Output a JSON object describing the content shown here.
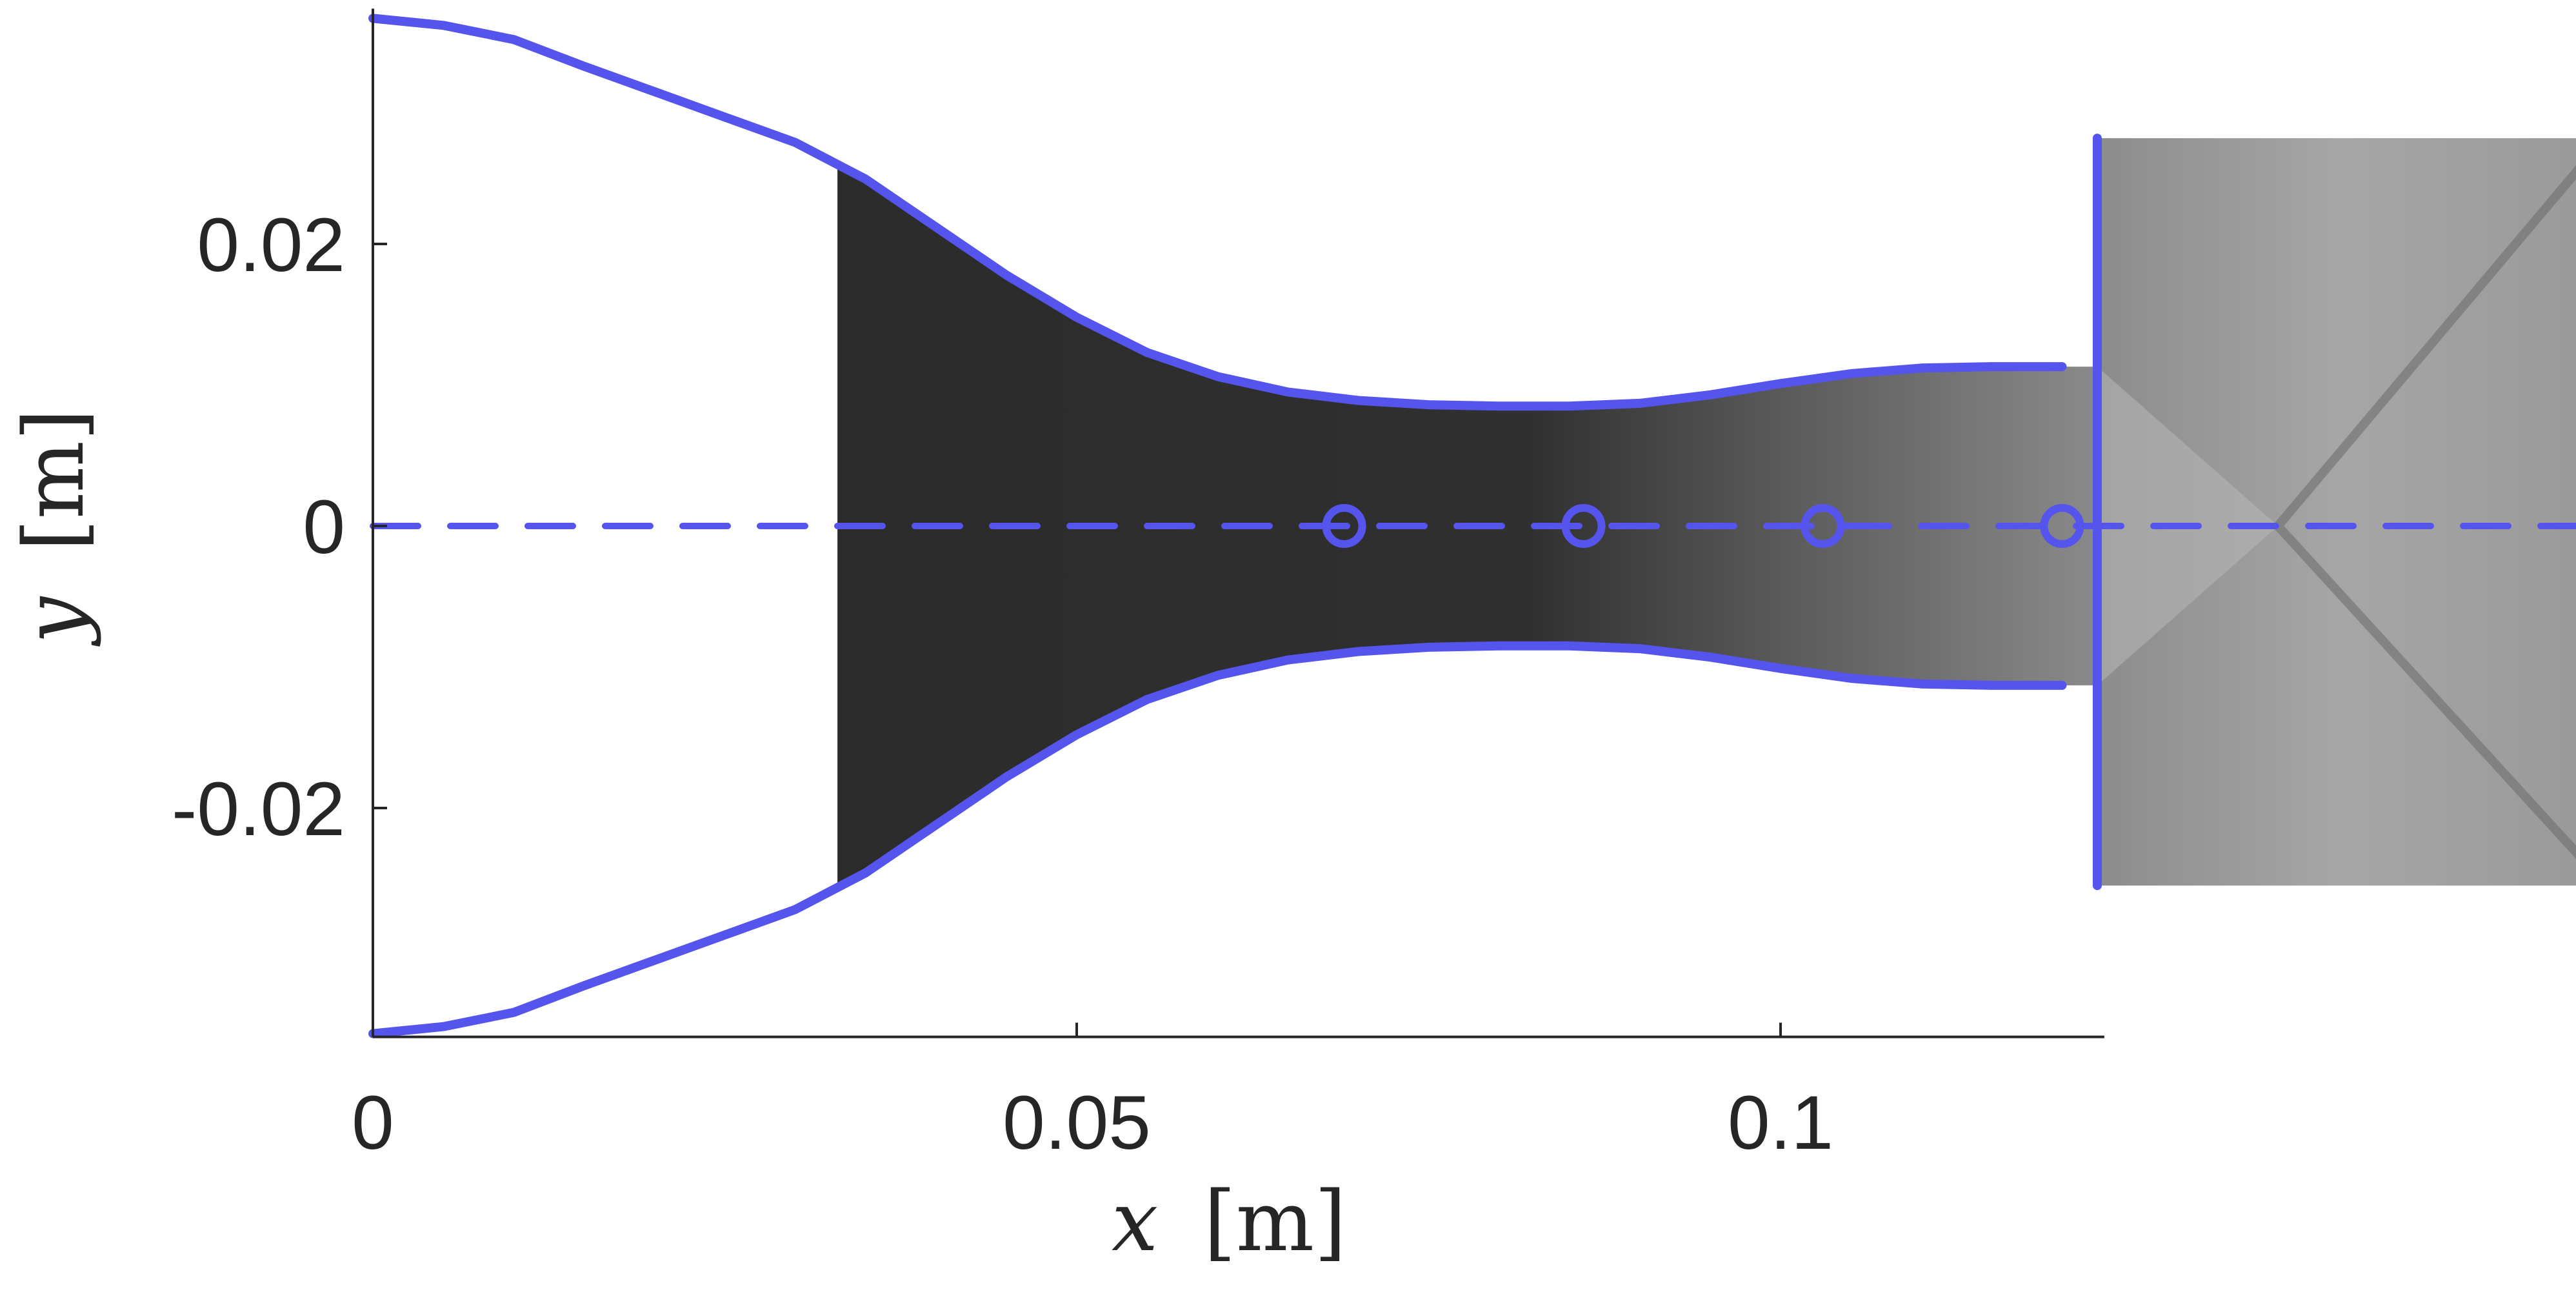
{
  "chart_data": {
    "type": "line",
    "title": "",
    "xlabel_var": "x",
    "xlabel_unit": "[m]",
    "ylabel_var": "y",
    "ylabel_unit": "[m]",
    "xlim": [
      0,
      0.123
    ],
    "ylim": [
      -0.036,
      0.036
    ],
    "x_ticks": [
      0,
      0.05,
      0.1
    ],
    "x_tick_labels": [
      "0",
      "0.05",
      "0.1"
    ],
    "y_ticks": [
      0.02,
      0,
      -0.02
    ],
    "y_tick_labels": [
      "0.02",
      "0",
      "-0.02"
    ],
    "grid": false,
    "legend": "none",
    "series": [
      {
        "id": "upper-wall",
        "style": "solid",
        "x": [
          0,
          0.005,
          0.01,
          0.015,
          0.02,
          0.025,
          0.03,
          0.035,
          0.04,
          0.045,
          0.05,
          0.055,
          0.06,
          0.065,
          0.07,
          0.075,
          0.08,
          0.085,
          0.09,
          0.095,
          0.1,
          0.105,
          0.11,
          0.115,
          0.12
        ],
        "y": [
          0.036,
          0.0355,
          0.0345,
          0.0326,
          0.0308,
          0.029,
          0.0272,
          0.0246,
          0.0212,
          0.0178,
          0.0148,
          0.0123,
          0.0106,
          0.0095,
          0.0089,
          0.0086,
          0.0085,
          0.0085,
          0.0087,
          0.0093,
          0.0101,
          0.0108,
          0.0112,
          0.0113,
          0.0113
        ]
      },
      {
        "id": "lower-wall",
        "style": "solid",
        "x": [
          0,
          0.005,
          0.01,
          0.015,
          0.02,
          0.025,
          0.03,
          0.035,
          0.04,
          0.045,
          0.05,
          0.055,
          0.06,
          0.065,
          0.07,
          0.075,
          0.08,
          0.085,
          0.09,
          0.095,
          0.1,
          0.105,
          0.11,
          0.115,
          0.12
        ],
        "y": [
          -0.036,
          -0.0355,
          -0.0345,
          -0.0326,
          -0.0308,
          -0.029,
          -0.0272,
          -0.0246,
          -0.0212,
          -0.0178,
          -0.0148,
          -0.0123,
          -0.0106,
          -0.0095,
          -0.0089,
          -0.0086,
          -0.0085,
          -0.0085,
          -0.0087,
          -0.0093,
          -0.0101,
          -0.0108,
          -0.0112,
          -0.0113,
          -0.0113
        ]
      },
      {
        "id": "nozzle-exit",
        "style": "solid",
        "x": [
          0.1225,
          0.1225
        ],
        "y": [
          -0.0255,
          0.0275
        ]
      },
      {
        "id": "centerline",
        "style": "dashed",
        "x": [
          0,
          0.157
        ],
        "y": [
          0,
          0
        ]
      }
    ],
    "markers": {
      "shape": "circle",
      "x": [
        0.069,
        0.086,
        0.103,
        0.12
      ],
      "y": [
        0,
        0,
        0,
        0
      ]
    },
    "overlays": [
      {
        "id": "schlieren-nozzle",
        "x_range": [
          0.033,
          0.1225
        ],
        "y_range": [
          -0.0255,
          0.0275
        ]
      },
      {
        "id": "schlieren-jet",
        "x_range": [
          0.1225,
          0.157
        ],
        "y_range": [
          -0.0255,
          0.0275
        ]
      }
    ],
    "colors": {
      "line": "#5555ee",
      "axis": "#262626",
      "image_dark": "#262626",
      "image_light": "#bdbdbd"
    }
  }
}
